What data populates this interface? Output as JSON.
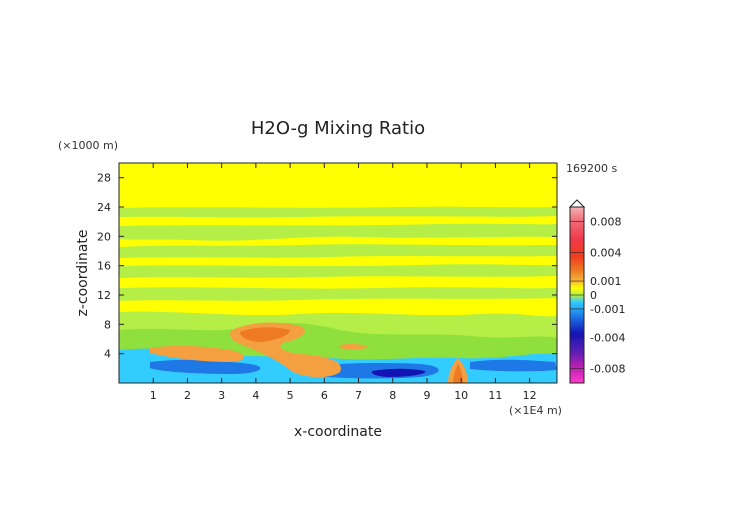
{
  "chart_data": {
    "type": "heatmap",
    "title": "H2O-g Mixing Ratio",
    "xlabel": "x-coordinate",
    "ylabel": "z-coordinate",
    "x_unit": "(×1E4 m)",
    "y_unit": "(×1000 m)",
    "time_label": "169200 s",
    "xlim": [
      0,
      12.8
    ],
    "ylim": [
      0,
      30
    ],
    "x_ticks": [
      "1",
      "2",
      "3",
      "4",
      "5",
      "6",
      "7",
      "8",
      "9",
      "10",
      "11",
      "12"
    ],
    "x_tick_values": [
      1,
      2,
      3,
      4,
      5,
      6,
      7,
      8,
      9,
      10,
      11,
      12
    ],
    "y_ticks": [
      "4",
      "8",
      "12",
      "16",
      "20",
      "24",
      "28"
    ],
    "y_tick_values": [
      4,
      8,
      12,
      16,
      20,
      24,
      28
    ],
    "colorbar": {
      "ticks": [
        "0.008",
        "0.004",
        "0.001",
        "0",
        "-0.001",
        "-0.004",
        "-0.008"
      ],
      "tick_values": [
        0.008,
        0.004,
        0.001,
        0,
        -0.001,
        -0.004,
        -0.008
      ],
      "range": [
        -0.01,
        0.01
      ]
    },
    "palette": {
      "yellow": "#ffff00",
      "light_green": "#b4ee46",
      "green": "#8fe03c",
      "cyan": "#33ccff",
      "blue": "#1e78e6",
      "dark_blue": "#1414b4",
      "orange": "#f5a040",
      "dark_orange": "#ee7a22"
    }
  }
}
